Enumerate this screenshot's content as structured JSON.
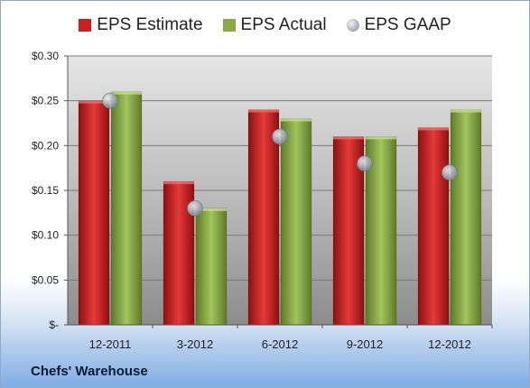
{
  "company": "Chefs' Warehouse",
  "chart_data": {
    "type": "bar",
    "categories": [
      "12-2011",
      "3-2012",
      "6-2012",
      "9-2012",
      "12-2012"
    ],
    "series": [
      {
        "name": "EPS Estimate",
        "type": "bar",
        "color": "#cc1f1f",
        "values": [
          0.25,
          0.16,
          0.24,
          0.21,
          0.22
        ]
      },
      {
        "name": "EPS Actual",
        "type": "bar",
        "color": "#8aaa45",
        "values": [
          0.26,
          0.13,
          0.23,
          0.21,
          0.24
        ]
      },
      {
        "name": "EPS GAAP",
        "type": "scatter",
        "color": "#9aa3ad",
        "values": [
          0.25,
          0.13,
          0.21,
          0.18,
          0.17
        ]
      }
    ],
    "yticks": [
      "$-",
      "$0.05",
      "$0.10",
      "$0.15",
      "$0.20",
      "$0.25",
      "$0.30"
    ],
    "ylim": [
      0,
      0.3
    ],
    "grid": true,
    "legend": "top"
  }
}
